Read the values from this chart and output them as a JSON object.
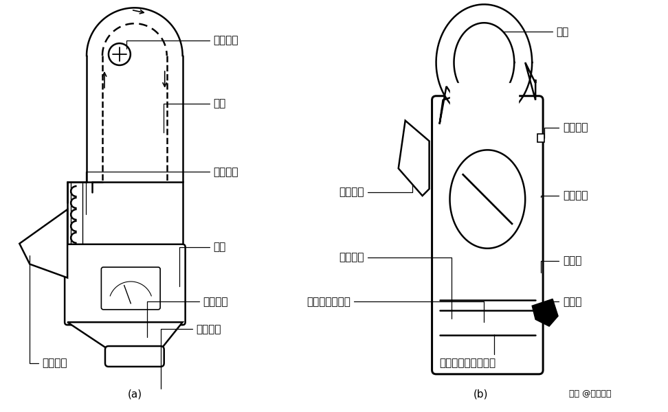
{
  "bg_color": "#ffffff",
  "line_color": "#000000",
  "fig_width": 9.72,
  "fig_height": 6.0,
  "dpi": 100,
  "label_a": "(a)",
  "label_b": "(b)",
  "watermark": "头条 @电工学堂"
}
